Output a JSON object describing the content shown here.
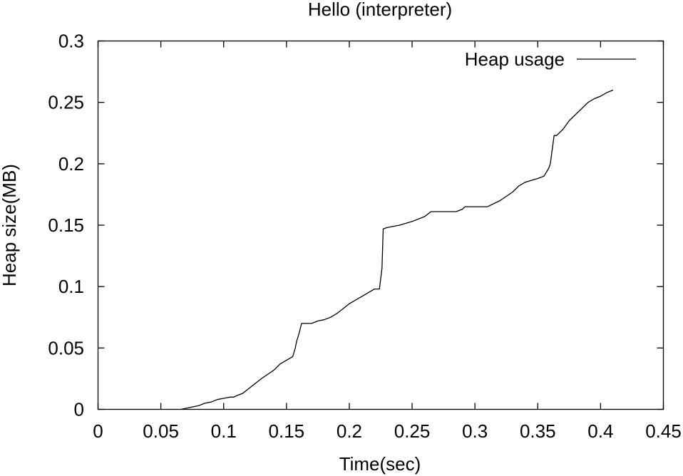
{
  "chart_data": {
    "type": "line",
    "title": "Hello (interpreter)",
    "xlabel": "Time(sec)",
    "ylabel": "Heap size(MB)",
    "xlim": [
      0,
      0.45
    ],
    "ylim": [
      0,
      0.3
    ],
    "xticks": [
      "0",
      "0.05",
      "0.1",
      "0.15",
      "0.2",
      "0.25",
      "0.3",
      "0.35",
      "0.4",
      "0.45"
    ],
    "yticks": [
      "0",
      "0.05",
      "0.1",
      "0.15",
      "0.2",
      "0.25",
      "0.3"
    ],
    "legend_position": "top-right",
    "grid": false,
    "line_color": "#000000",
    "series": [
      {
        "name": "Heap usage",
        "x": [
          0.066,
          0.075,
          0.08,
          0.085,
          0.09,
          0.095,
          0.1,
          0.105,
          0.108,
          0.11,
          0.115,
          0.12,
          0.13,
          0.14,
          0.145,
          0.15,
          0.155,
          0.157,
          0.158,
          0.16,
          0.162,
          0.163,
          0.17,
          0.175,
          0.18,
          0.185,
          0.19,
          0.195,
          0.2,
          0.205,
          0.21,
          0.215,
          0.22,
          0.224,
          0.226,
          0.227,
          0.23,
          0.24,
          0.25,
          0.26,
          0.265,
          0.27,
          0.285,
          0.29,
          0.292,
          0.3,
          0.31,
          0.32,
          0.33,
          0.335,
          0.34,
          0.35,
          0.355,
          0.358,
          0.359,
          0.36,
          0.363,
          0.365,
          0.37,
          0.375,
          0.38,
          0.385,
          0.39,
          0.395,
          0.4,
          0.405,
          0.41
        ],
        "y": [
          0.0,
          0.002,
          0.003,
          0.005,
          0.006,
          0.008,
          0.009,
          0.01,
          0.01,
          0.011,
          0.013,
          0.017,
          0.025,
          0.032,
          0.037,
          0.04,
          0.043,
          0.05,
          0.055,
          0.062,
          0.07,
          0.07,
          0.07,
          0.072,
          0.073,
          0.075,
          0.078,
          0.082,
          0.086,
          0.089,
          0.092,
          0.095,
          0.098,
          0.098,
          0.115,
          0.147,
          0.148,
          0.15,
          0.153,
          0.157,
          0.161,
          0.161,
          0.161,
          0.163,
          0.165,
          0.165,
          0.165,
          0.17,
          0.177,
          0.182,
          0.185,
          0.188,
          0.19,
          0.195,
          0.197,
          0.2,
          0.223,
          0.223,
          0.228,
          0.235,
          0.24,
          0.245,
          0.25,
          0.253,
          0.255,
          0.258,
          0.26
        ]
      }
    ]
  }
}
